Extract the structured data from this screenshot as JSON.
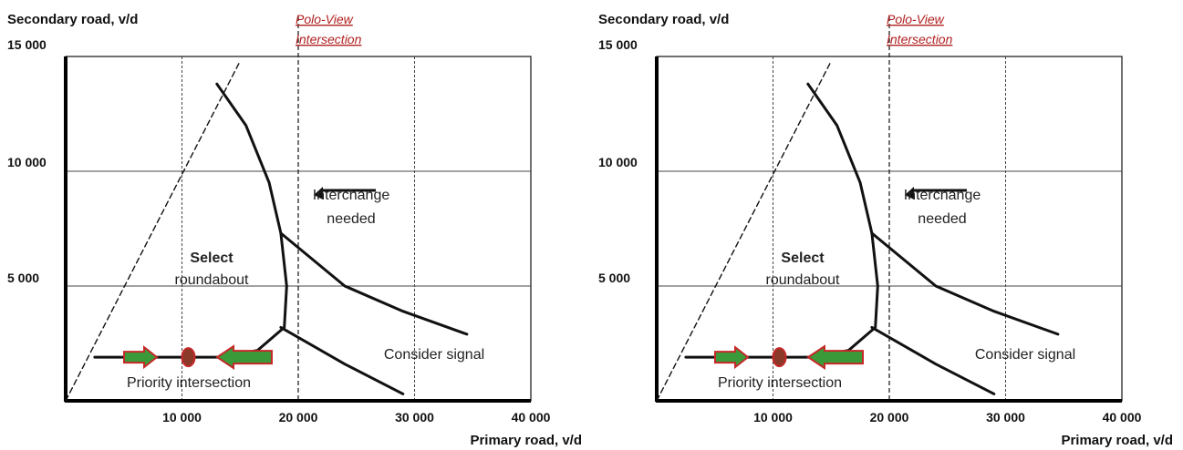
{
  "chart_data": [
    {
      "type": "line",
      "xlabel": "Primary road, v/d",
      "ylabel": "Secondary road, v/d",
      "xlim": [
        0,
        40000
      ],
      "ylim": [
        0,
        15000
      ],
      "x_ticks": [
        "10 000",
        "20 000",
        "30 000",
        "40 000"
      ],
      "y_ticks": [
        "5 000",
        "10 000",
        "15 000"
      ],
      "grid": true,
      "annotation": [
        "Polo-View",
        "Intersection"
      ],
      "regions": {
        "roundabout": [
          "Select",
          "roundabout"
        ],
        "interchange": [
          "Interchange",
          "needed"
        ],
        "signal": "Consider signal",
        "priority": "Priority intersection"
      },
      "series": [
        {
          "values": [
            [
              0,
              0
            ],
            [
              15000,
              14800
            ]
          ]
        },
        {
          "values": [
            [
              13000,
              13800
            ],
            [
              15500,
              12000
            ],
            [
              17500,
              9500
            ],
            [
              18500,
              7300
            ],
            [
              19000,
              5000
            ],
            [
              18800,
              3200
            ],
            [
              16500,
              2200
            ],
            [
              13500,
              1900
            ],
            [
              2500,
              1900
            ]
          ]
        },
        {
          "values": [
            [
              18500,
              7300
            ],
            [
              24000,
              5000
            ],
            [
              29000,
              3900
            ],
            [
              34500,
              2900
            ]
          ]
        },
        {
          "values": [
            [
              18500,
              3200
            ],
            [
              24000,
              1600
            ],
            [
              29000,
              300
            ]
          ]
        }
      ],
      "markers": {
        "polo_view_x": 20000,
        "priority_point": [
          10000,
          1900
        ]
      }
    },
    {
      "type": "line",
      "xlabel": "Primary road, v/d",
      "ylabel": "Secondary road, v/d",
      "xlim": [
        0,
        40000
      ],
      "ylim": [
        0,
        15000
      ],
      "x_ticks": [
        "10 000",
        "20 000",
        "30 000",
        "40 000"
      ],
      "y_ticks": [
        "5 000",
        "10 000",
        "15 000"
      ],
      "grid": true,
      "annotation": [
        "Polo-View",
        "Intersection"
      ],
      "regions": {
        "roundabout": [
          "Select",
          "roundabout"
        ],
        "interchange": [
          "Interchange",
          "needed"
        ],
        "signal": "Consider signal",
        "priority": "Priority intersection"
      },
      "series": [
        {
          "values": [
            [
              0,
              0
            ],
            [
              15000,
              14800
            ]
          ]
        },
        {
          "values": [
            [
              13000,
              13800
            ],
            [
              15500,
              12000
            ],
            [
              17500,
              9500
            ],
            [
              18500,
              7300
            ],
            [
              19000,
              5000
            ],
            [
              18800,
              3200
            ],
            [
              16500,
              2200
            ],
            [
              13500,
              1900
            ],
            [
              2500,
              1900
            ]
          ]
        },
        {
          "values": [
            [
              18500,
              7300
            ],
            [
              24000,
              5000
            ],
            [
              29000,
              3900
            ],
            [
              34500,
              2900
            ]
          ]
        },
        {
          "values": [
            [
              18500,
              3200
            ],
            [
              24000,
              1600
            ],
            [
              29000,
              300
            ]
          ]
        }
      ],
      "markers": {
        "polo_view_x": 20000,
        "priority_point": [
          10000,
          1900
        ]
      }
    }
  ]
}
